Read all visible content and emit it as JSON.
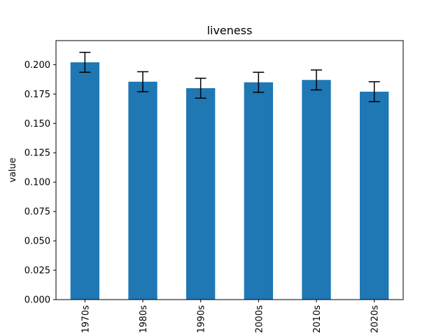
{
  "chart_data": {
    "type": "bar",
    "title": "liveness",
    "xlabel": "",
    "ylabel": "value",
    "categories": [
      "1970s",
      "1980s",
      "1990s",
      "2000s",
      "2010s",
      "2020s"
    ],
    "values": [
      0.202,
      0.1855,
      0.18,
      0.185,
      0.187,
      0.177
    ],
    "error": [
      0.0085,
      0.0085,
      0.0085,
      0.0085,
      0.0085,
      0.0085
    ],
    "ylim": [
      0,
      0.2205
    ],
    "yticks": [
      "0.000",
      "0.025",
      "0.050",
      "0.075",
      "0.100",
      "0.125",
      "0.150",
      "0.175",
      "0.200"
    ],
    "grid": false,
    "legend": "none",
    "bar_color": "#1f77b4",
    "error_color": "#000000"
  }
}
